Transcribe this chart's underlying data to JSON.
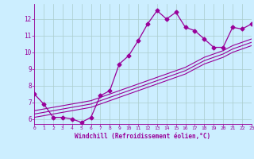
{
  "title": "",
  "xlabel": "Windchill (Refroidissement éolien,°C)",
  "ylabel": "",
  "background_color": "#cceeff",
  "grid_color": "#aacccc",
  "line_color": "#990099",
  "x_data": [
    0,
    1,
    2,
    3,
    4,
    5,
    6,
    7,
    8,
    9,
    10,
    11,
    12,
    13,
    14,
    15,
    16,
    17,
    18,
    19,
    20,
    21,
    22,
    23
  ],
  "y_main": [
    7.5,
    6.9,
    6.1,
    6.1,
    6.0,
    5.8,
    6.1,
    7.4,
    7.7,
    9.3,
    9.8,
    10.7,
    11.7,
    12.5,
    12.0,
    12.4,
    11.5,
    11.3,
    10.8,
    10.3,
    10.3,
    11.5,
    11.4,
    11.7
  ],
  "y_ref1": [
    6.5,
    6.6,
    6.7,
    6.8,
    6.9,
    7.0,
    7.1,
    7.3,
    7.5,
    7.7,
    7.9,
    8.1,
    8.3,
    8.5,
    8.7,
    8.9,
    9.1,
    9.4,
    9.7,
    9.9,
    10.1,
    10.4,
    10.6,
    10.8
  ],
  "y_ref2": [
    6.3,
    6.4,
    6.5,
    6.6,
    6.7,
    6.8,
    6.9,
    7.1,
    7.3,
    7.5,
    7.7,
    7.9,
    8.1,
    8.3,
    8.5,
    8.7,
    8.9,
    9.2,
    9.5,
    9.7,
    9.9,
    10.2,
    10.4,
    10.6
  ],
  "y_ref3": [
    6.1,
    6.2,
    6.3,
    6.4,
    6.5,
    6.6,
    6.7,
    6.9,
    7.1,
    7.3,
    7.5,
    7.7,
    7.9,
    8.1,
    8.3,
    8.5,
    8.7,
    9.0,
    9.3,
    9.5,
    9.7,
    10.0,
    10.2,
    10.4
  ],
  "xlim": [
    0,
    23
  ],
  "ylim": [
    5.7,
    12.9
  ],
  "yticks": [
    6,
    7,
    8,
    9,
    10,
    11,
    12
  ],
  "xticks": [
    0,
    1,
    2,
    3,
    4,
    5,
    6,
    7,
    8,
    9,
    10,
    11,
    12,
    13,
    14,
    15,
    16,
    17,
    18,
    19,
    20,
    21,
    22,
    23
  ],
  "markersize": 2.5,
  "linewidth": 0.9,
  "ref_linewidth": 0.8
}
